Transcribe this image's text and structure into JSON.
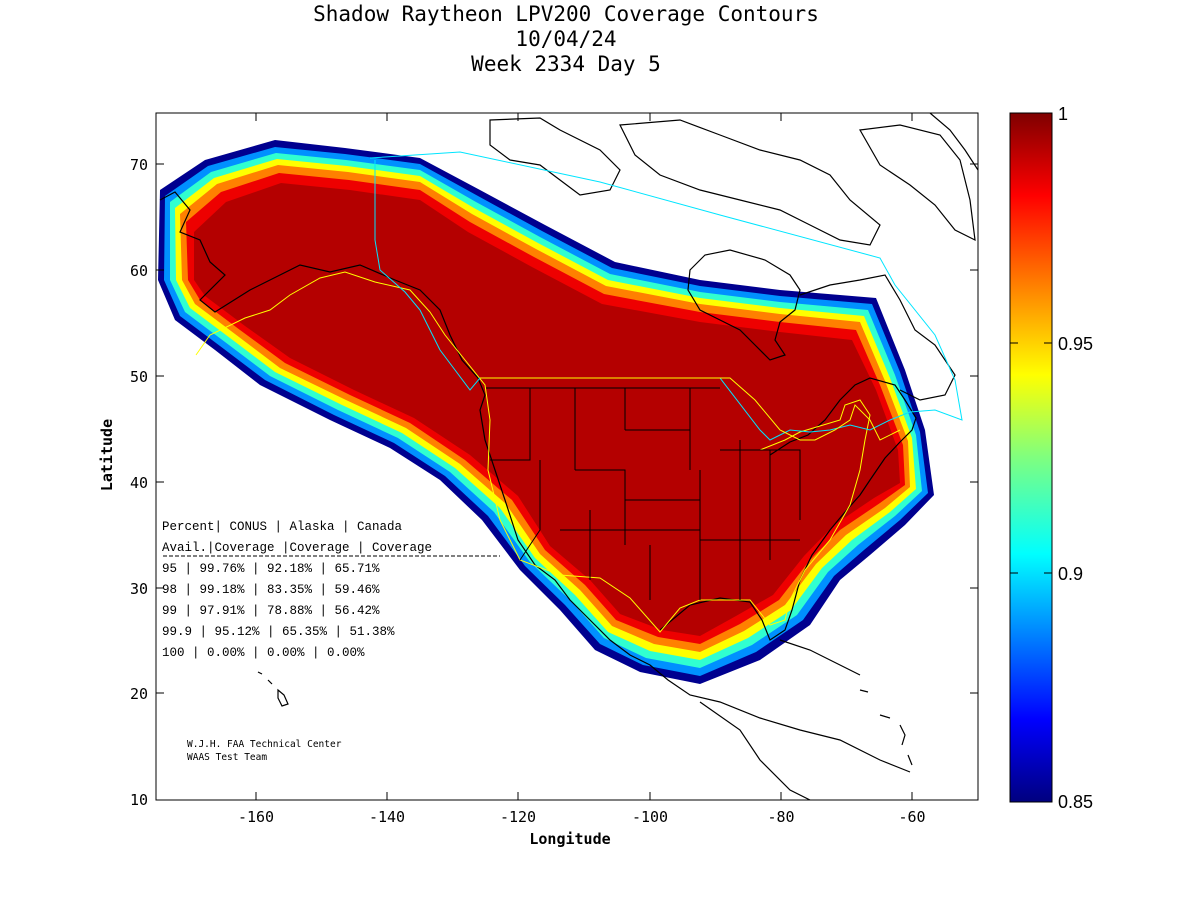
{
  "title_lines": [
    "Shadow Raytheon LPV200 Coverage Contours",
    "10/04/24",
    "Week 2334 Day 5"
  ],
  "x_axis": {
    "label": "Longitude",
    "range": [
      -175,
      -50
    ],
    "ticks": [
      "-160",
      "-140",
      "-120",
      "-100",
      "-80",
      "-60"
    ]
  },
  "y_axis": {
    "label": "Latitude",
    "range": [
      10,
      75
    ],
    "ticks": [
      "10",
      "20",
      "30",
      "40",
      "50",
      "60",
      "70"
    ]
  },
  "colorbar": {
    "range": [
      0.85,
      1
    ],
    "tick_labels": [
      "1",
      "0.95",
      "0.9",
      "0.85"
    ],
    "colormap": "jet"
  },
  "coverage_table": {
    "header_row1": "Percent| CONUS   | Alaska  | Canada",
    "header_row2": " Avail.|Coverage |Coverage | Coverage",
    "rows": [
      "  95   | 99.76%  | 92.18% | 65.71%",
      "  98   | 99.18%  | 83.35% | 59.46%",
      "  99   | 97.91%  | 78.88% | 56.42%",
      "99.9   | 95.12%  | 65.35% | 51.38%",
      " 100   | 0.00%  | 0.00% | 0.00%"
    ]
  },
  "credits": [
    "W.J.H. FAA Technical Center",
    "WAAS Test Team"
  ],
  "colors": {
    "service_boundary": "#ffff00",
    "coverage_line": "#00e5ff",
    "land_outline": "#000000"
  }
}
